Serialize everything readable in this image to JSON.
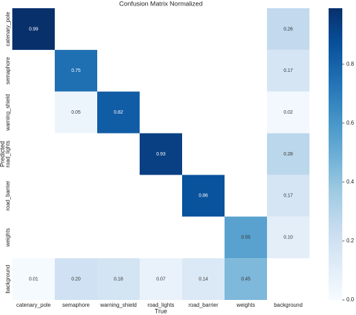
{
  "chart_data": {
    "type": "heatmap",
    "title": "Confusion Matrix Normalized",
    "x_label": "True",
    "y_label": "Predicted",
    "x_categories": [
      "catenary_pole",
      "semaphore",
      "warning_shield",
      "road_lights",
      "road_barrier",
      "weights",
      "background"
    ],
    "y_categories": [
      "catenary_pole",
      "semaphore",
      "warning_shield",
      "road_lights",
      "road_barrier",
      "weights",
      "background"
    ],
    "values": [
      [
        0.99,
        null,
        null,
        null,
        null,
        null,
        0.26
      ],
      [
        null,
        0.75,
        null,
        null,
        null,
        null,
        0.17
      ],
      [
        null,
        0.05,
        0.82,
        null,
        null,
        null,
        0.02
      ],
      [
        null,
        null,
        null,
        0.93,
        null,
        null,
        0.28
      ],
      [
        null,
        null,
        null,
        null,
        0.86,
        null,
        0.17
      ],
      [
        null,
        null,
        null,
        null,
        null,
        0.55,
        0.1
      ],
      [
        0.01,
        0.2,
        0.18,
        0.07,
        0.14,
        0.45,
        null
      ]
    ],
    "value_labels": [
      [
        "0.99",
        null,
        null,
        null,
        null,
        null,
        "0.26"
      ],
      [
        null,
        "0.75",
        null,
        null,
        null,
        null,
        "0.17"
      ],
      [
        null,
        "0.05",
        "0.82",
        null,
        null,
        null,
        "0.02"
      ],
      [
        null,
        null,
        null,
        "0.93",
        null,
        null,
        "0.28"
      ],
      [
        null,
        null,
        null,
        null,
        "0.86",
        null,
        "0.17"
      ],
      [
        null,
        null,
        null,
        null,
        null,
        "0.55",
        "0.10"
      ],
      [
        "0.01",
        "0.20",
        "0.18",
        "0.07",
        "0.14",
        "0.45",
        null
      ]
    ],
    "colormap": "Blues",
    "clim": [
      0,
      0.99
    ],
    "cticks": [
      {
        "value": 0,
        "label": "0.0"
      },
      0.2,
      0.4,
      0.6,
      0.8
    ]
  }
}
